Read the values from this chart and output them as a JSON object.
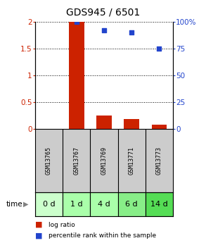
{
  "title": "GDS945 / 6501",
  "samples": [
    "GSM13765",
    "GSM13767",
    "GSM13769",
    "GSM13771",
    "GSM13773"
  ],
  "time_labels": [
    "0 d",
    "1 d",
    "4 d",
    "6 d",
    "14 d"
  ],
  "log_ratio": [
    0.0,
    2.0,
    0.25,
    0.18,
    0.08
  ],
  "percentile_rank": [
    null,
    100.0,
    92.0,
    90.0,
    75.0
  ],
  "bar_color": "#cc2200",
  "dot_color": "#2244cc",
  "ylim_left": [
    0,
    2.0
  ],
  "ylim_right": [
    0,
    100
  ],
  "yticks_left": [
    0,
    0.5,
    1.0,
    1.5,
    2.0
  ],
  "yticks_right": [
    0,
    25,
    50,
    75,
    100
  ],
  "sample_bg_color": "#cccccc",
  "time_bg_colors": [
    "#ccffcc",
    "#aaffaa",
    "#aaffaa",
    "#88ee88",
    "#55dd55"
  ],
  "legend_log_ratio_color": "#cc2200",
  "legend_percentile_color": "#2244cc"
}
